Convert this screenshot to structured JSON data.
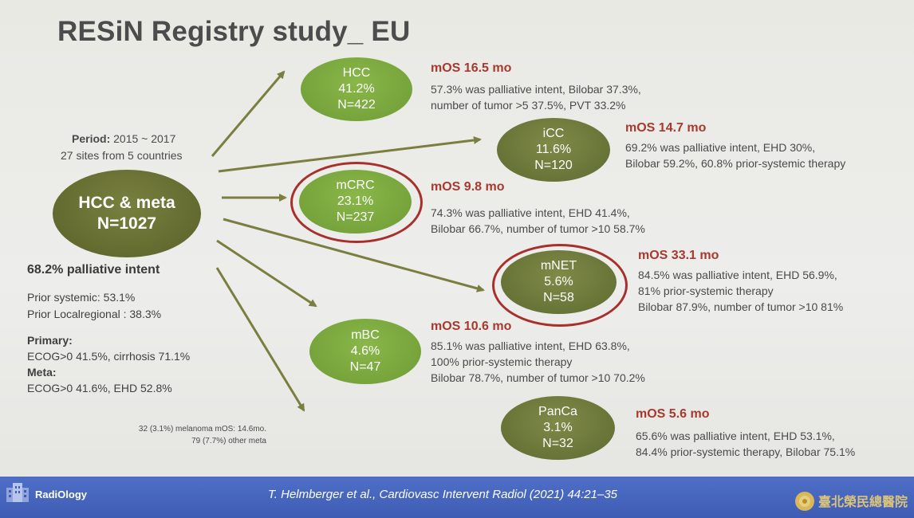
{
  "title": "RESiN Registry study_ EU",
  "center": {
    "period_label": "Period:",
    "period_value": "2015 ~ 2017",
    "sites": "27 sites from 5 countries",
    "name": "HCC & meta",
    "n": "N=1027"
  },
  "left_info": {
    "palliative": "68.2% palliative intent",
    "prior_systemic": "Prior systemic: 53.1%",
    "prior_locoregional": "Prior Localregional : 38.3%",
    "primary_label": "Primary:",
    "primary_value": "ECOG>0 41.5%, cirrhosis 71.1%",
    "meta_label": "Meta:",
    "meta_value": "ECOG>0 41.6%, EHD 52.8%",
    "note1": "32 (3.1%) melanoma mOS: 14.6mo.",
    "note2": "79 (7.7%) other meta"
  },
  "groups": {
    "hcc": {
      "name": "HCC",
      "pct": "41.2%",
      "n": "N=422",
      "mos": "mOS 16.5 mo",
      "line1": "57.3% was palliative intent, Bilobar 37.3%,",
      "line2": "number of tumor >5 37.5%, PVT 33.2%"
    },
    "icc": {
      "name": "iCC",
      "pct": "11.6%",
      "n": "N=120",
      "mos": "mOS 14.7 mo",
      "line1": "69.2% was palliative intent, EHD 30%,",
      "line2": "Bilobar 59.2%, 60.8% prior-systemic therapy"
    },
    "mcrc": {
      "name": "mCRC",
      "pct": "23.1%",
      "n": "N=237",
      "mos": "mOS 9.8 mo",
      "line1": "74.3% was palliative intent, EHD 41.4%,",
      "line2": "Bilobar 66.7%, number of tumor >10 58.7%"
    },
    "mnet": {
      "name": "mNET",
      "pct": "5.6%",
      "n": "N=58",
      "mos": "mOS 33.1 mo",
      "line1": "84.5% was palliative intent, EHD 56.9%,",
      "line2": "81% prior-systemic therapy",
      "line3": "Bilobar 87.9%, number of tumor >10 81%"
    },
    "mbc": {
      "name": "mBC",
      "pct": "4.6%",
      "n": "N=47",
      "mos": "mOS 10.6 mo",
      "line1": "85.1% was palliative intent, EHD 63.8%,",
      "line2": "100% prior-systemic therapy",
      "line3": "Bilobar 78.7%, number of tumor >10 70.2%"
    },
    "panca": {
      "name": "PanCa",
      "pct": "3.1%",
      "n": "N=32",
      "mos": "mOS 5.6 mo",
      "line1": "65.6% was palliative intent, EHD 53.1%,",
      "line2": "84.4% prior-systemic therapy, Bilobar 75.1%"
    }
  },
  "colors": {
    "light_green": "#7aa83f",
    "olive": "#6b7638",
    "mos_red": "#a8392f",
    "ring_red": "#a8302c",
    "arrow": "#7a7f40",
    "footer_blue": "#4565bd"
  },
  "footer": {
    "logo": "RadiOlogy",
    "citation": "T. Helmberger et al., Cardiovasc Intervent Radiol (2021) 44:21–35",
    "hospital": "臺北榮民總醫院"
  }
}
